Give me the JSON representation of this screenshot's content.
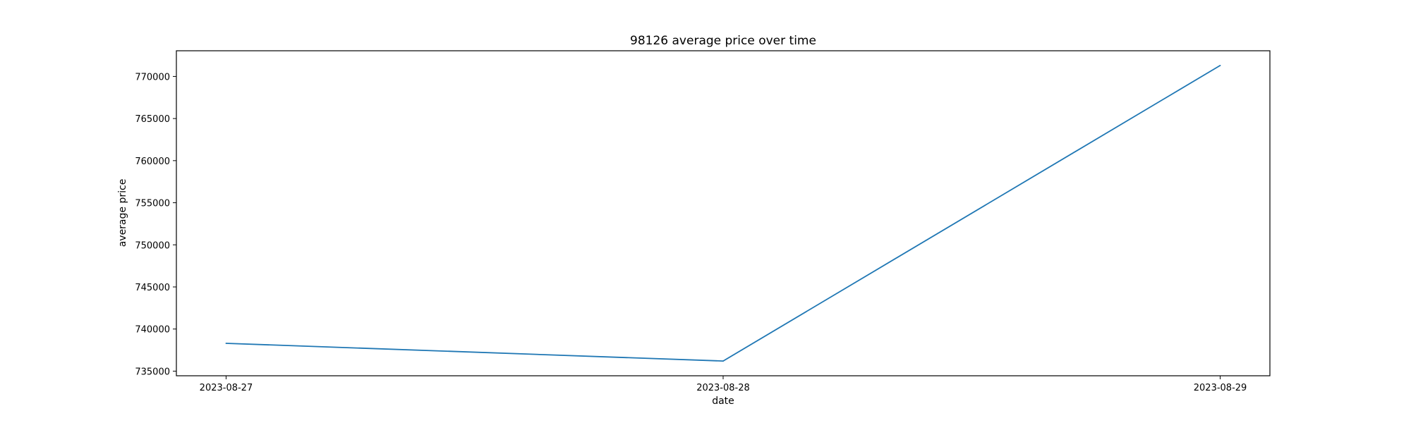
{
  "chart_data": {
    "type": "line",
    "title": "98126 average price over time",
    "xlabel": "date",
    "ylabel": "average price",
    "x": [
      "2023-08-27",
      "2023-08-28",
      "2023-08-29"
    ],
    "series": [
      {
        "values": [
          738300,
          736200,
          771300
        ],
        "color": "#1f77b4"
      }
    ],
    "yticks": [
      735000,
      740000,
      745000,
      750000,
      755000,
      760000,
      765000,
      770000
    ],
    "ylim": [
      734450,
      773050
    ],
    "grid": false,
    "legend": "none"
  }
}
